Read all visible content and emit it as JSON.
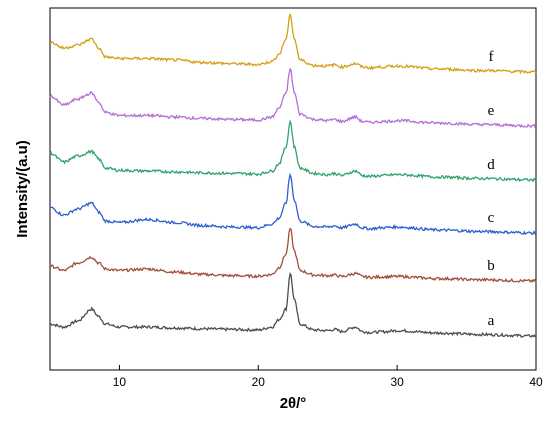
{
  "chart_data": {
    "type": "line",
    "title": "",
    "xlabel": "2θ/°",
    "ylabel": "Intensity/(a.u)",
    "xlim": [
      5,
      40
    ],
    "xticks": [
      10,
      20,
      30,
      40
    ],
    "y_ticks_shown": false,
    "grid": false,
    "legend": "none",
    "series": [
      {
        "label": "a",
        "color": "#4d4d4d",
        "x": [
          5,
          6,
          7,
          8,
          8.5,
          9,
          10,
          12,
          14,
          16,
          18,
          20,
          21,
          21.5,
          22,
          22.3,
          22.6,
          23,
          24,
          25,
          25.5,
          26,
          27,
          27.5,
          28,
          29,
          30,
          33,
          36,
          40
        ],
        "y": [
          0.4,
          0.3,
          0.5,
          0.9,
          0.65,
          0.4,
          0.3,
          0.3,
          0.27,
          0.24,
          0.22,
          0.2,
          0.3,
          0.55,
          0.9,
          2.1,
          1.2,
          0.4,
          0.2,
          0.18,
          0.22,
          0.15,
          0.3,
          0.15,
          0.12,
          0.14,
          0.18,
          0.1,
          0.05,
          0.0
        ]
      },
      {
        "label": "b",
        "color": "#a34f3a",
        "x": [
          5,
          6,
          7,
          8,
          8.5,
          9,
          10,
          12,
          14,
          16,
          18,
          20,
          21,
          21.5,
          22,
          22.3,
          22.6,
          23,
          24,
          25,
          25.5,
          26,
          27,
          27.5,
          28,
          29,
          30,
          33,
          36,
          40
        ],
        "y": [
          0.5,
          0.35,
          0.6,
          0.8,
          0.6,
          0.4,
          0.35,
          0.4,
          0.3,
          0.22,
          0.18,
          0.16,
          0.22,
          0.45,
          0.9,
          1.75,
          1.0,
          0.35,
          0.2,
          0.18,
          0.2,
          0.15,
          0.25,
          0.15,
          0.12,
          0.14,
          0.15,
          0.08,
          0.04,
          0.0
        ]
      },
      {
        "label": "c",
        "color": "#2f5fd0",
        "x": [
          5,
          6,
          7,
          8,
          8.5,
          9,
          10,
          12,
          14,
          16,
          18,
          20,
          21,
          21.5,
          22,
          22.3,
          22.6,
          23,
          24,
          25,
          25.5,
          26,
          27,
          27.5,
          28,
          29,
          30,
          33,
          36,
          40
        ],
        "y": [
          0.85,
          0.6,
          0.8,
          1.0,
          0.7,
          0.4,
          0.35,
          0.45,
          0.35,
          0.25,
          0.2,
          0.18,
          0.3,
          0.5,
          1.0,
          1.95,
          1.1,
          0.4,
          0.22,
          0.2,
          0.24,
          0.17,
          0.3,
          0.17,
          0.14,
          0.18,
          0.2,
          0.1,
          0.05,
          0.0
        ]
      },
      {
        "label": "d",
        "color": "#2fa36b",
        "x": [
          5,
          6,
          7,
          8,
          8.5,
          9,
          10,
          12,
          14,
          16,
          18,
          20,
          21,
          21.5,
          22,
          22.3,
          22.6,
          23,
          24,
          25,
          25.5,
          26,
          27,
          27.5,
          28,
          29,
          30,
          33,
          36,
          40
        ],
        "y": [
          0.9,
          0.6,
          0.8,
          0.95,
          0.7,
          0.4,
          0.32,
          0.3,
          0.27,
          0.24,
          0.22,
          0.2,
          0.3,
          0.55,
          1.1,
          1.95,
          1.1,
          0.4,
          0.22,
          0.18,
          0.22,
          0.15,
          0.3,
          0.15,
          0.12,
          0.15,
          0.18,
          0.1,
          0.05,
          0.0
        ]
      },
      {
        "label": "e",
        "color": "#b36fd6",
        "x": [
          5,
          6,
          7,
          8,
          8.5,
          9,
          10,
          12,
          14,
          16,
          18,
          20,
          21,
          21.5,
          22,
          22.3,
          22.6,
          23,
          24,
          25,
          25.5,
          26,
          27,
          27.5,
          28,
          29,
          30,
          33,
          36,
          40
        ],
        "y": [
          1.0,
          0.7,
          0.9,
          1.1,
          0.8,
          0.45,
          0.35,
          0.35,
          0.3,
          0.25,
          0.22,
          0.2,
          0.3,
          0.6,
          1.1,
          1.9,
          1.1,
          0.4,
          0.22,
          0.18,
          0.22,
          0.15,
          0.3,
          0.15,
          0.12,
          0.15,
          0.18,
          0.1,
          0.05,
          0.0
        ]
      },
      {
        "label": "f",
        "color": "#d4a017",
        "x": [
          5,
          6,
          7,
          8,
          8.5,
          9,
          10,
          12,
          14,
          16,
          18,
          20,
          21,
          21.5,
          22,
          22.3,
          22.6,
          23,
          24,
          25,
          25.5,
          26,
          27,
          27.5,
          28,
          29,
          30,
          33,
          36,
          40
        ],
        "y": [
          1.0,
          0.8,
          0.9,
          1.1,
          0.8,
          0.5,
          0.45,
          0.45,
          0.4,
          0.32,
          0.28,
          0.25,
          0.35,
          0.6,
          1.1,
          1.9,
          1.1,
          0.4,
          0.22,
          0.2,
          0.24,
          0.17,
          0.28,
          0.17,
          0.14,
          0.17,
          0.2,
          0.1,
          0.05,
          0.0
        ]
      }
    ]
  }
}
